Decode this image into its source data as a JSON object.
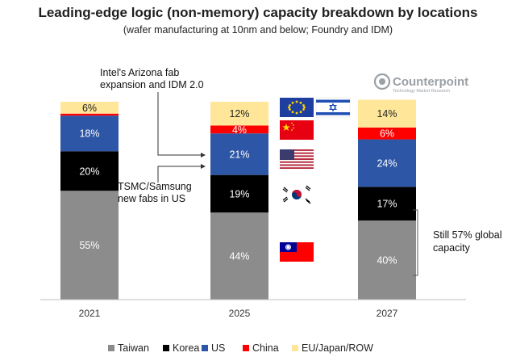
{
  "chart_data": {
    "type": "bar",
    "stacked": true,
    "title": "Leading-edge logic (non-memory) capacity breakdown by locations",
    "subtitle": "(wafer manufacturing at 10nm and below; Foundry and IDM)",
    "categories": [
      "2021",
      "2025",
      "2027"
    ],
    "series": [
      {
        "name": "Taiwan",
        "color": "#8c8c8c",
        "values": [
          55,
          44,
          40
        ]
      },
      {
        "name": "Korea",
        "color": "#000000",
        "values": [
          20,
          19,
          17
        ]
      },
      {
        "name": "US",
        "color": "#2e56a6",
        "values": [
          18,
          21,
          24
        ]
      },
      {
        "name": "China",
        "color": "#ff0000",
        "values": [
          1,
          4,
          6
        ]
      },
      {
        "name": "EU/Japan/ROW",
        "color": "#ffe699",
        "values": [
          6,
          12,
          14
        ]
      }
    ],
    "data_labels": [
      [
        "55%",
        "20%",
        "18%",
        "",
        "6%"
      ],
      [
        "44%",
        "19%",
        "21%",
        "4%",
        "12%"
      ],
      [
        "40%",
        "17%",
        "24%",
        "6%",
        "14%"
      ]
    ],
    "legend_position": "bottom",
    "grid": false
  },
  "annotations": {
    "intel_line1": "Intel's Arizona fab",
    "intel_line2": "expansion and IDM 2.0",
    "tsmc_line1": "TSMC/Samsung",
    "tsmc_line2": "new fabs in US",
    "still_line1": "Still 57% global",
    "still_line2": "capacity"
  },
  "logo": {
    "name": "Counterpoint",
    "tagline": "Technology Market Research"
  },
  "flags": [
    "eu-flag-icon",
    "israel-flag-icon",
    "china-flag-icon",
    "usa-flag-icon",
    "korea-flag-icon",
    "taiwan-flag-icon"
  ]
}
